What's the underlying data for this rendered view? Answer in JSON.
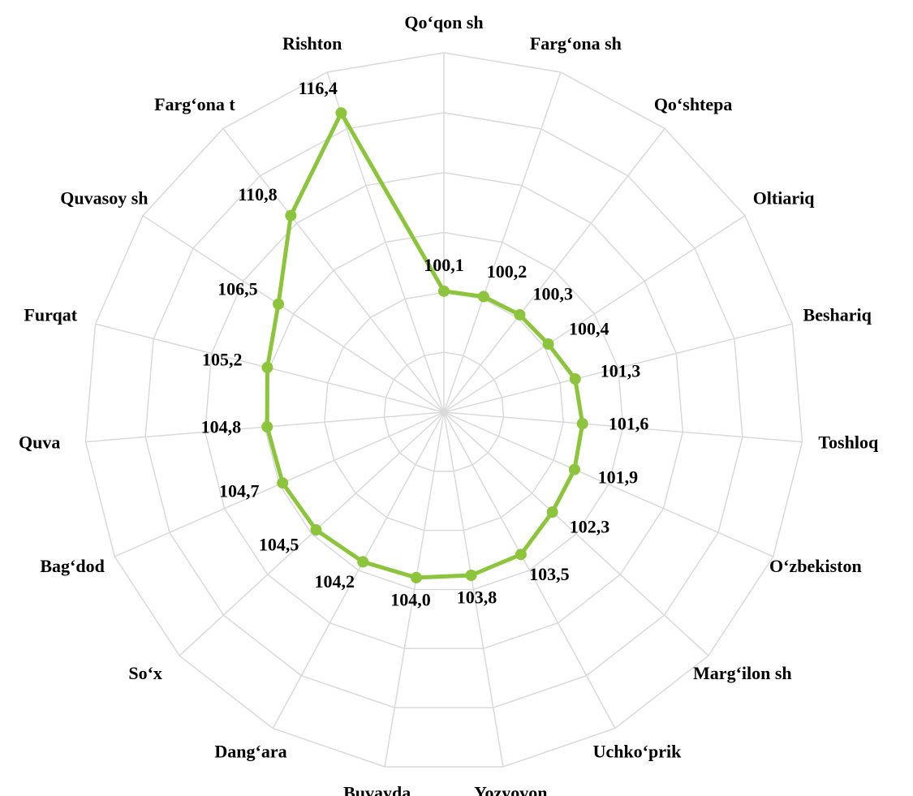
{
  "chart_data": {
    "type": "radar",
    "categories": [
      "Qo‘qon sh",
      "Farg‘ona sh",
      "Qo‘shtepa",
      "Oltiariq",
      "Beshariq",
      "Toshloq",
      "O‘zbekiston",
      "Marg‘ilon sh",
      "Uchko‘prik",
      "Yozyovon",
      "Buvayda",
      "Dang‘ara",
      "So‘x",
      "Bag‘dod",
      "Quva",
      "Furqat",
      "Quvasoy sh",
      "Farg‘ona t",
      "Rishton"
    ],
    "values": [
      100.1,
      100.2,
      100.3,
      100.4,
      101.3,
      101.6,
      101.9,
      102.3,
      103.5,
      103.8,
      104.0,
      104.2,
      104.5,
      104.7,
      104.8,
      105.2,
      106.5,
      110.8,
      116.4
    ],
    "value_labels": [
      "100,1",
      "100,2",
      "100,3",
      "100,4",
      "101,3",
      "101,6",
      "101,9",
      "102,3",
      "103,5",
      "103,8",
      "104,0",
      "104,2",
      "104,5",
      "104,7",
      "104,8",
      "105,2",
      "106,5",
      "110,8",
      "116,4"
    ],
    "color": "#8cc43c",
    "ylim": [
      90,
      120
    ],
    "yticks": [
      95,
      100,
      105,
      110,
      115,
      120
    ],
    "grid": true
  }
}
